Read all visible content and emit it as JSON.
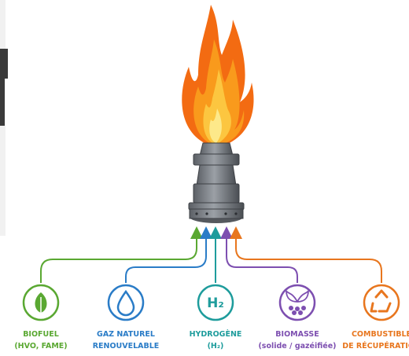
{
  "nodes": [
    {
      "lines": [
        "BIOFUEL",
        "(HVO, FAME)"
      ]
    },
    {
      "lines": [
        "GAZ NATUREL",
        "RENOUVELABLE"
      ]
    },
    {
      "icon_text": "H₂",
      "lines": [
        "HYDROGÈNE",
        "(H₂)"
      ]
    },
    {
      "lines": [
        "BIOMASSE",
        "(solide / gazéifiée)"
      ]
    },
    {
      "lines": [
        "COMBUSTIBLE",
        "DE RÉCUPÉRATION"
      ]
    }
  ]
}
